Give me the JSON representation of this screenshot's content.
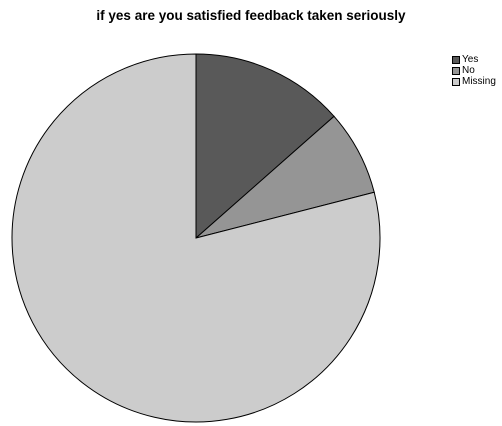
{
  "chart_data": {
    "type": "pie",
    "title": "if yes are you satisfied feedback taken seriously",
    "legend_position": "top-right",
    "slices": [
      {
        "label": "Yes",
        "value": 13.5,
        "color": "#595959"
      },
      {
        "label": "No",
        "value": 7.5,
        "color": "#959595"
      },
      {
        "label": "Missing",
        "value": 79.0,
        "color": "#cccccc"
      }
    ]
  }
}
